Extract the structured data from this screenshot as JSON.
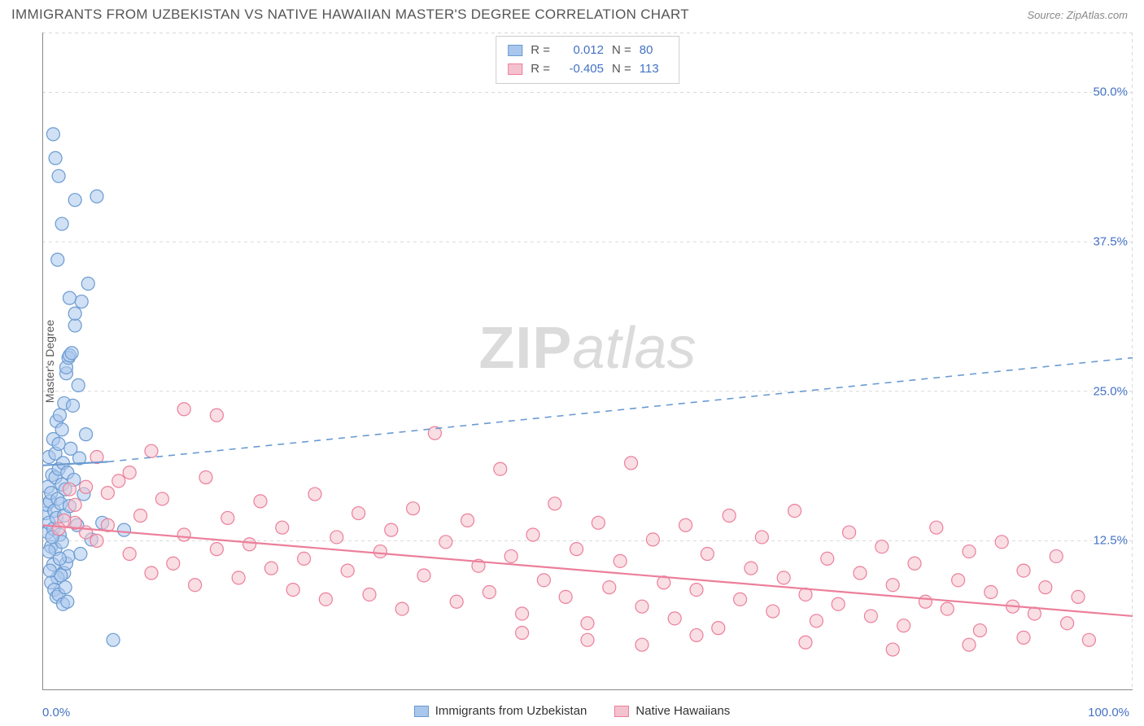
{
  "title": "IMMIGRANTS FROM UZBEKISTAN VS NATIVE HAWAIIAN MASTER'S DEGREE CORRELATION CHART",
  "source": "Source: ZipAtlas.com",
  "watermark_a": "ZIP",
  "watermark_b": "atlas",
  "ylabel": "Master's Degree",
  "chart": {
    "type": "scatter",
    "background_color": "#ffffff",
    "grid_color": "#d9d9d9",
    "axis_color": "#888888",
    "xlim": [
      0,
      100
    ],
    "ylim": [
      0,
      55
    ],
    "xticks": [
      0,
      100
    ],
    "xtick_labels": [
      "0.0%",
      "100.0%"
    ],
    "yticks": [
      12.5,
      25.0,
      37.5,
      50.0
    ],
    "ytick_labels": [
      "12.5%",
      "25.0%",
      "37.5%",
      "50.0%"
    ],
    "marker_radius": 8,
    "marker_opacity": 0.55,
    "line_width_solid": 2.2,
    "line_width_dash": 1.6,
    "series": [
      {
        "key": "uzbekistan",
        "label": "Immigrants from Uzbekistan",
        "color_fill": "#a9c6ec",
        "color_stroke": "#6b9bd1",
        "r_label": "R =",
        "r_value": "0.012",
        "n_label": "N =",
        "n_value": "80",
        "trend_solid": {
          "x1": 0,
          "y1": 18.8,
          "x2": 6,
          "y2": 19.1
        },
        "trend_dash": {
          "x1": 6,
          "y1": 19.1,
          "x2": 100,
          "y2": 27.8
        },
        "points": [
          [
            0.3,
            14.8
          ],
          [
            0.4,
            15.5
          ],
          [
            0.5,
            13.2
          ],
          [
            0.5,
            17.0
          ],
          [
            0.6,
            14.0
          ],
          [
            0.6,
            19.5
          ],
          [
            0.7,
            15.8
          ],
          [
            0.8,
            12.0
          ],
          [
            0.8,
            16.5
          ],
          [
            0.9,
            18.0
          ],
          [
            1.0,
            13.5
          ],
          [
            1.0,
            21.0
          ],
          [
            1.1,
            15.0
          ],
          [
            1.2,
            17.8
          ],
          [
            1.2,
            19.8
          ],
          [
            1.3,
            14.4
          ],
          [
            1.3,
            22.5
          ],
          [
            1.4,
            16.0
          ],
          [
            1.5,
            18.5
          ],
          [
            1.5,
            20.6
          ],
          [
            1.6,
            13.0
          ],
          [
            1.6,
            23.0
          ],
          [
            1.7,
            15.6
          ],
          [
            1.8,
            17.2
          ],
          [
            1.8,
            21.8
          ],
          [
            1.9,
            19.0
          ],
          [
            2.0,
            14.6
          ],
          [
            2.0,
            24.0
          ],
          [
            2.1,
            16.8
          ],
          [
            2.2,
            26.5
          ],
          [
            2.2,
            27.0
          ],
          [
            2.3,
            18.2
          ],
          [
            2.4,
            27.8
          ],
          [
            2.5,
            28.0
          ],
          [
            2.5,
            15.4
          ],
          [
            2.6,
            20.2
          ],
          [
            2.7,
            28.2
          ],
          [
            2.8,
            23.8
          ],
          [
            2.9,
            17.6
          ],
          [
            3.0,
            30.5
          ],
          [
            3.0,
            31.5
          ],
          [
            3.2,
            13.8
          ],
          [
            3.3,
            25.5
          ],
          [
            3.4,
            19.4
          ],
          [
            3.6,
            32.5
          ],
          [
            3.8,
            16.4
          ],
          [
            4.0,
            21.4
          ],
          [
            4.2,
            34.0
          ],
          [
            2.0,
            9.8
          ],
          [
            2.2,
            10.6
          ],
          [
            2.4,
            11.2
          ],
          [
            1.0,
            10.5
          ],
          [
            1.2,
            11.8
          ],
          [
            1.4,
            9.4
          ],
          [
            1.6,
            11.0
          ],
          [
            1.8,
            12.4
          ],
          [
            0.8,
            9.0
          ],
          [
            1.1,
            8.4
          ],
          [
            1.3,
            7.8
          ],
          [
            1.5,
            8.0
          ],
          [
            1.7,
            9.6
          ],
          [
            1.9,
            7.2
          ],
          [
            2.1,
            8.6
          ],
          [
            2.3,
            7.4
          ],
          [
            0.6,
            11.6
          ],
          [
            0.7,
            10.0
          ],
          [
            0.9,
            12.8
          ],
          [
            3.5,
            11.4
          ],
          [
            4.5,
            12.6
          ],
          [
            5.5,
            14.0
          ],
          [
            6.5,
            4.2
          ],
          [
            7.5,
            13.4
          ],
          [
            1.4,
            36.0
          ],
          [
            3.0,
            41.0
          ],
          [
            5.0,
            41.3
          ],
          [
            1.5,
            43.0
          ],
          [
            1.0,
            46.5
          ],
          [
            1.2,
            44.5
          ],
          [
            1.8,
            39.0
          ],
          [
            2.5,
            32.8
          ]
        ]
      },
      {
        "key": "hawaiian",
        "label": "Native Hawaiians",
        "color_fill": "#f4c2ce",
        "color_stroke": "#ec7f9a",
        "r_label": "R =",
        "r_value": "-0.405",
        "n_label": "N =",
        "n_value": "113",
        "trend_solid": {
          "x1": 0,
          "y1": 13.8,
          "x2": 100,
          "y2": 6.2
        },
        "trend_dash": null,
        "points": [
          [
            3,
            14.0
          ],
          [
            4,
            13.2
          ],
          [
            5,
            12.5
          ],
          [
            6,
            13.8
          ],
          [
            7,
            17.5
          ],
          [
            8,
            11.4
          ],
          [
            9,
            14.6
          ],
          [
            10,
            9.8
          ],
          [
            11,
            16.0
          ],
          [
            12,
            10.6
          ],
          [
            13,
            13.0
          ],
          [
            14,
            8.8
          ],
          [
            15,
            17.8
          ],
          [
            16,
            11.8
          ],
          [
            17,
            14.4
          ],
          [
            18,
            9.4
          ],
          [
            19,
            12.2
          ],
          [
            20,
            15.8
          ],
          [
            21,
            10.2
          ],
          [
            22,
            13.6
          ],
          [
            23,
            8.4
          ],
          [
            24,
            11.0
          ],
          [
            25,
            16.4
          ],
          [
            26,
            7.6
          ],
          [
            27,
            12.8
          ],
          [
            28,
            10.0
          ],
          [
            29,
            14.8
          ],
          [
            30,
            8.0
          ],
          [
            31,
            11.6
          ],
          [
            32,
            13.4
          ],
          [
            33,
            6.8
          ],
          [
            34,
            15.2
          ],
          [
            35,
            9.6
          ],
          [
            36,
            21.5
          ],
          [
            37,
            12.4
          ],
          [
            38,
            7.4
          ],
          [
            39,
            14.2
          ],
          [
            40,
            10.4
          ],
          [
            41,
            8.2
          ],
          [
            42,
            18.5
          ],
          [
            43,
            11.2
          ],
          [
            44,
            6.4
          ],
          [
            45,
            13.0
          ],
          [
            46,
            9.2
          ],
          [
            47,
            15.6
          ],
          [
            48,
            7.8
          ],
          [
            49,
            11.8
          ],
          [
            50,
            5.6
          ],
          [
            51,
            14.0
          ],
          [
            52,
            8.6
          ],
          [
            53,
            10.8
          ],
          [
            54,
            19.0
          ],
          [
            55,
            7.0
          ],
          [
            56,
            12.6
          ],
          [
            57,
            9.0
          ],
          [
            58,
            6.0
          ],
          [
            59,
            13.8
          ],
          [
            60,
            8.4
          ],
          [
            61,
            11.4
          ],
          [
            62,
            5.2
          ],
          [
            63,
            14.6
          ],
          [
            64,
            7.6
          ],
          [
            65,
            10.2
          ],
          [
            66,
            12.8
          ],
          [
            67,
            6.6
          ],
          [
            68,
            9.4
          ],
          [
            69,
            15.0
          ],
          [
            70,
            8.0
          ],
          [
            71,
            5.8
          ],
          [
            72,
            11.0
          ],
          [
            73,
            7.2
          ],
          [
            74,
            13.2
          ],
          [
            75,
            9.8
          ],
          [
            76,
            6.2
          ],
          [
            77,
            12.0
          ],
          [
            78,
            8.8
          ],
          [
            79,
            5.4
          ],
          [
            80,
            10.6
          ],
          [
            81,
            7.4
          ],
          [
            82,
            13.6
          ],
          [
            83,
            6.8
          ],
          [
            84,
            9.2
          ],
          [
            85,
            11.6
          ],
          [
            86,
            5.0
          ],
          [
            87,
            8.2
          ],
          [
            88,
            12.4
          ],
          [
            89,
            7.0
          ],
          [
            90,
            10.0
          ],
          [
            91,
            6.4
          ],
          [
            92,
            8.6
          ],
          [
            93,
            11.2
          ],
          [
            94,
            5.6
          ],
          [
            95,
            7.8
          ],
          [
            96,
            4.2
          ],
          [
            13,
            23.5
          ],
          [
            16,
            23.0
          ],
          [
            8,
            18.2
          ],
          [
            10,
            20.0
          ],
          [
            4,
            17.0
          ],
          [
            5,
            19.5
          ],
          [
            6,
            16.5
          ],
          [
            3,
            15.5
          ],
          [
            2,
            14.2
          ],
          [
            2.5,
            16.8
          ],
          [
            1.5,
            13.5
          ],
          [
            44,
            4.8
          ],
          [
            50,
            4.2
          ],
          [
            55,
            3.8
          ],
          [
            60,
            4.6
          ],
          [
            70,
            4.0
          ],
          [
            78,
            3.4
          ],
          [
            85,
            3.8
          ],
          [
            90,
            4.4
          ]
        ]
      }
    ]
  },
  "legend_top_desc": "correlation statistics",
  "legend_bottom_desc": "series legend"
}
